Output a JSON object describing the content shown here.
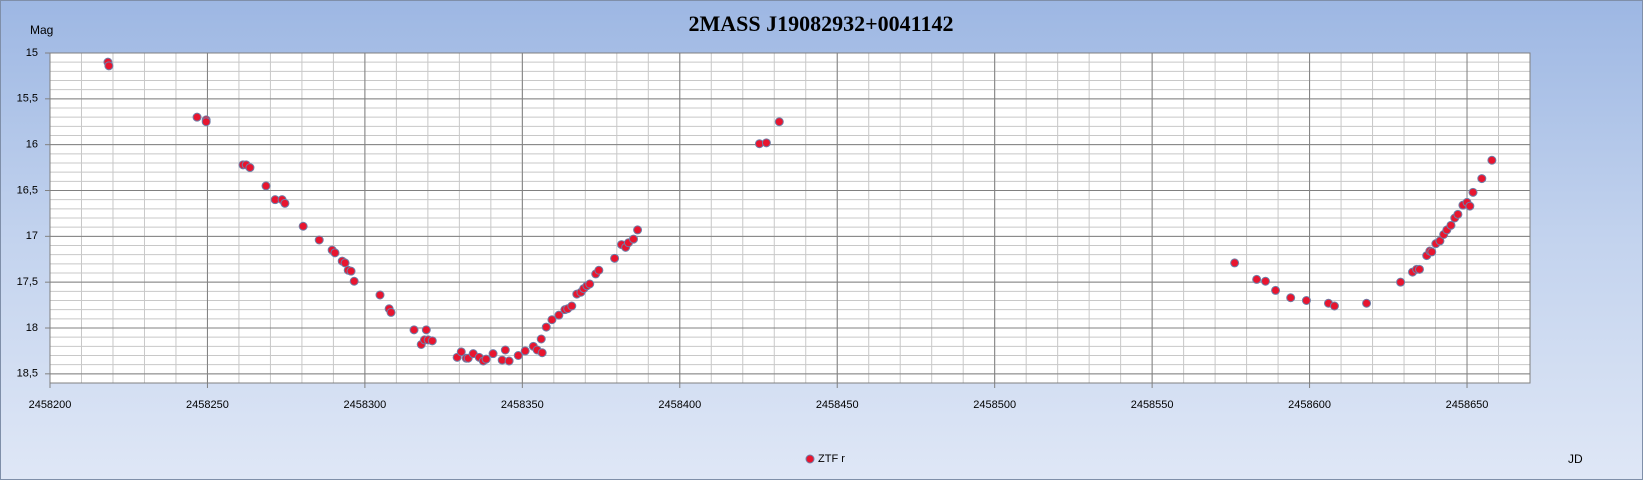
{
  "chart_data": {
    "type": "scatter",
    "title": "2MASS J19082932+0041142",
    "y_label": "Mag",
    "x_label": "JD",
    "xlim": [
      2458200,
      2458670
    ],
    "ylim": [
      15,
      18.6
    ],
    "y_reversed": true,
    "xticks": [
      2458200,
      2458250,
      2458300,
      2458350,
      2458400,
      2458450,
      2458500,
      2458550,
      2458600,
      2458650
    ],
    "yticks": [
      15,
      {
        "value": 15.5,
        "label": "15,5"
      },
      16,
      {
        "value": 16.5,
        "label": "16,5"
      },
      17,
      {
        "value": 17.5,
        "label": "17,5"
      },
      18,
      {
        "value": 18.5,
        "label": "18,5"
      }
    ],
    "grid": true,
    "minor_grid": {
      "x_step": 10,
      "y_step": 0.1
    },
    "legend": "bottom",
    "series": [
      {
        "name": "ZTF r",
        "color": "#e8152f",
        "x": [
          2458218.4,
          2458218.7,
          2458246.7,
          2458249.6,
          2458249.6,
          2458261.3,
          2458262.3,
          2458263.5,
          2458268.6,
          2458271.5,
          2458273.7,
          2458274.6,
          2458280.4,
          2458285.5,
          2458289.6,
          2458290.5,
          2458292.8,
          2458293.7,
          2458294.7,
          2458295.6,
          2458296.6,
          2458304.8,
          2458307.7,
          2458308.3,
          2458315.6,
          2458317.9,
          2458318.9,
          2458319.5,
          2458320.1,
          2458321.4,
          2458329.3,
          2458330.6,
          2458332.2,
          2458332.8,
          2458334.4,
          2458336.3,
          2458337.6,
          2458338.5,
          2458340.7,
          2458343.6,
          2458344.6,
          2458345.8,
          2458348.7,
          2458350.9,
          2458353.5,
          2458354.7,
          2458356.0,
          2458356.3,
          2458357.6,
          2458359.4,
          2458361.6,
          2458363.5,
          2458364.4,
          2458365.7,
          2458367.3,
          2458368.6,
          2458369.5,
          2458370.5,
          2458371.4,
          2458373.3,
          2458374.3,
          2458379.3,
          2458381.5,
          2458382.8,
          2458383.7,
          2458385.3,
          2458386.6,
          2458425.3,
          2458427.5,
          2458431.6,
          2458576.2,
          2458583.2,
          2458586.0,
          2458589.2,
          2458594.0,
          2458599.0,
          2458606.0,
          2458607.9,
          2458618.1,
          2458628.9,
          2458632.7,
          2458634.0,
          2458634.9,
          2458637.2,
          2458638.2,
          2458638.8,
          2458640.1,
          2458641.4,
          2458642.6,
          2458643.6,
          2458644.9,
          2458646.1,
          2458647.1,
          2458648.7,
          2458650.0,
          2458650.9,
          2458651.9,
          2458654.7,
          2458657.9
        ],
        "values": [
          15.1,
          15.14,
          15.7,
          15.73,
          15.75,
          16.22,
          16.22,
          16.25,
          16.45,
          16.6,
          16.6,
          16.64,
          16.89,
          17.04,
          17.15,
          17.18,
          17.27,
          17.29,
          17.37,
          17.38,
          17.49,
          17.64,
          17.79,
          17.83,
          18.02,
          18.18,
          18.13,
          18.02,
          18.13,
          18.14,
          18.32,
          18.26,
          18.33,
          18.33,
          18.28,
          18.32,
          18.36,
          18.34,
          18.28,
          18.35,
          18.24,
          18.36,
          18.3,
          18.25,
          18.2,
          18.24,
          18.12,
          18.27,
          17.99,
          17.91,
          17.86,
          17.8,
          17.79,
          17.76,
          17.63,
          17.61,
          17.57,
          17.54,
          17.52,
          17.41,
          17.37,
          17.24,
          17.09,
          17.12,
          17.07,
          17.03,
          16.93,
          15.99,
          15.98,
          15.75,
          17.29,
          17.47,
          17.49,
          17.59,
          17.67,
          17.7,
          17.73,
          17.76,
          17.73,
          17.5,
          17.39,
          17.36,
          17.36,
          17.21,
          17.16,
          17.17,
          17.08,
          17.05,
          16.98,
          16.93,
          16.88,
          16.8,
          16.76,
          16.66,
          16.63,
          16.67,
          16.52,
          16.37,
          16.17
        ]
      }
    ]
  }
}
